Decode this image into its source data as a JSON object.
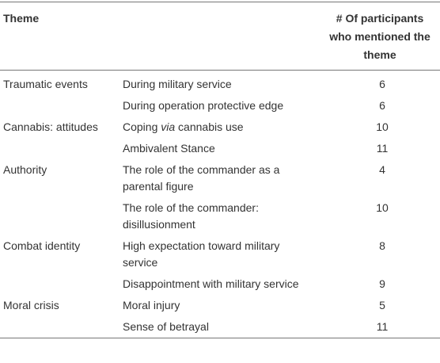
{
  "table": {
    "header": {
      "theme": "Theme",
      "count": "# Of participants who mentioned the theme"
    },
    "rows": [
      {
        "theme": "Traumatic events",
        "subthemes": [
          {
            "name": "During military service",
            "count": 6
          },
          {
            "name": "During operation protective edge",
            "count": 6
          }
        ]
      },
      {
        "theme": "Cannabis: attitudes",
        "subthemes": [
          {
            "name": [
              {
                "text": "Coping "
              },
              {
                "text": "via",
                "italic": true
              },
              {
                "text": " cannabis use"
              }
            ],
            "count": 10
          },
          {
            "name": "Ambivalent Stance",
            "count": 11
          }
        ]
      },
      {
        "theme": "Authority",
        "subthemes": [
          {
            "name": "The role of the commander as a parental figure",
            "count": 4
          },
          {
            "name": "The role of the commander: disillusionment",
            "count": 10
          }
        ]
      },
      {
        "theme": "Combat identity",
        "subthemes": [
          {
            "name": "High expectation toward military service",
            "count": 8
          },
          {
            "name": "Disappointment with military service",
            "count": 9
          }
        ]
      },
      {
        "theme": "Moral crisis",
        "subthemes": [
          {
            "name": "Moral injury",
            "count": 5
          },
          {
            "name": "Sense of betrayal",
            "count": 11
          }
        ]
      }
    ]
  }
}
